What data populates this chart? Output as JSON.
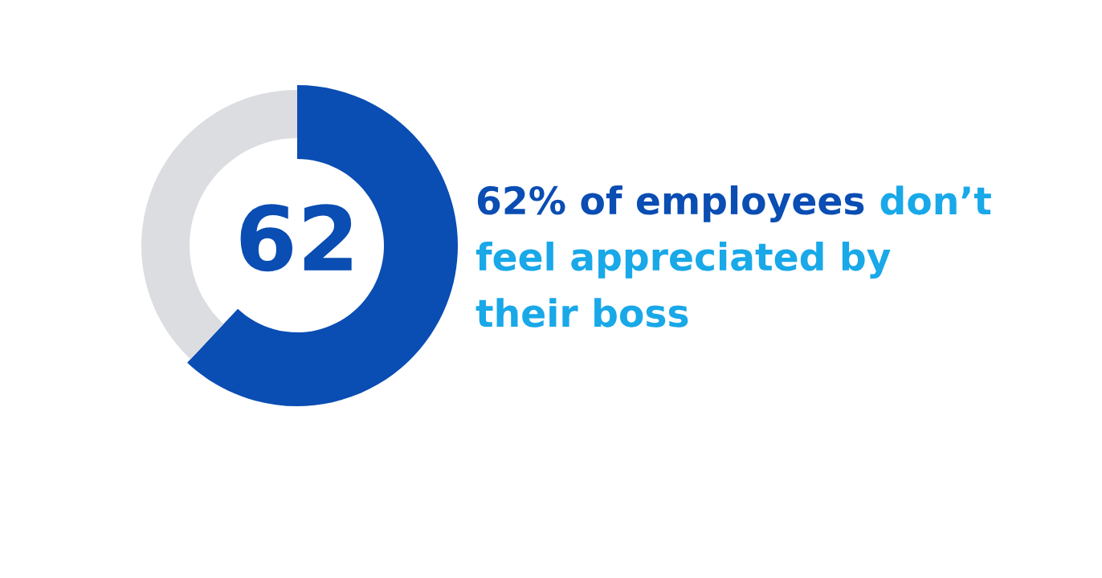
{
  "chart_data": {
    "type": "donut",
    "categories": [
      null,
      null
    ],
    "values": [
      62,
      38
    ],
    "colors": [
      "#0a4db3",
      "#dcdde1"
    ],
    "annotations": [
      "62",
      "62% of employees",
      "don’t",
      "feel appreciated by",
      "their boss"
    ]
  }
}
